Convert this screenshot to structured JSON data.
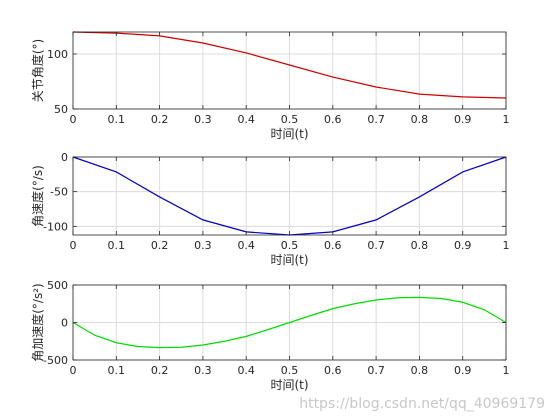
{
  "watermark": "https://blog.csdn.net/qq_40969179",
  "chart_data": [
    {
      "type": "line",
      "xlabel": "时间(t)",
      "ylabel": "关节角度(°)",
      "xlim": [
        0,
        1
      ],
      "ylim": [
        50,
        120
      ],
      "xticks": [
        0,
        0.1,
        0.2,
        0.3,
        0.4,
        0.5,
        0.6,
        0.7,
        0.8,
        0.9,
        1
      ],
      "xtick_labels": [
        "0",
        "0.1",
        "0.2",
        "0.3",
        "0.4",
        "0.5",
        "0.6",
        "0.7",
        "0.8",
        "0.9",
        "1"
      ],
      "yticks": [
        50,
        100
      ],
      "ytick_labels": [
        "50",
        "100"
      ],
      "grid": true,
      "series": [
        {
          "color": "#d00000",
          "x": [
            0,
            0.1,
            0.2,
            0.3,
            0.4,
            0.5,
            0.6,
            0.7,
            0.8,
            0.9,
            1.0
          ],
          "y": [
            120,
            119.0,
            116.5,
            110.0,
            101.0,
            90.0,
            79.0,
            70.0,
            63.5,
            61.0,
            60
          ]
        }
      ]
    },
    {
      "type": "line",
      "xlabel": "时间(t)",
      "ylabel": "角速度(°/s)",
      "xlim": [
        0,
        1
      ],
      "ylim": [
        -112.5,
        0
      ],
      "xticks": [
        0,
        0.1,
        0.2,
        0.3,
        0.4,
        0.5,
        0.6,
        0.7,
        0.8,
        0.9,
        1
      ],
      "xtick_labels": [
        "0",
        "0.1",
        "0.2",
        "0.3",
        "0.4",
        "0.5",
        "0.6",
        "0.7",
        "0.8",
        "0.9",
        "1"
      ],
      "yticks": [
        -100,
        -50,
        0
      ],
      "ytick_labels": [
        "-100",
        "-50",
        "0"
      ],
      "grid": true,
      "series": [
        {
          "color": "#0000cc",
          "x": [
            0,
            0.1,
            0.2,
            0.3,
            0.4,
            0.5,
            0.6,
            0.7,
            0.8,
            0.9,
            1.0
          ],
          "y": [
            0,
            -21.6,
            -57.6,
            -90.7,
            -108.0,
            -112.5,
            -108.0,
            -90.7,
            -57.6,
            -21.6,
            0
          ]
        }
      ]
    },
    {
      "type": "line",
      "xlabel": "时间(t)",
      "ylabel": "角加速度(°/s²)",
      "xlim": [
        0,
        1
      ],
      "ylim": [
        -500,
        500
      ],
      "xticks": [
        0,
        0.1,
        0.2,
        0.3,
        0.4,
        0.5,
        0.6,
        0.7,
        0.8,
        0.9,
        1
      ],
      "xtick_labels": [
        "0",
        "0.1",
        "0.2",
        "0.3",
        "0.4",
        "0.5",
        "0.6",
        "0.7",
        "0.8",
        "0.9",
        "1"
      ],
      "yticks": [
        -500,
        0,
        500
      ],
      "ytick_labels": [
        "-500",
        "0",
        "500"
      ],
      "grid": true,
      "series": [
        {
          "color": "#00dd00",
          "x": [
            0,
            0.05,
            0.1,
            0.15,
            0.2,
            0.25,
            0.3,
            0.35,
            0.4,
            0.45,
            0.5,
            0.55,
            0.6,
            0.65,
            0.7,
            0.75,
            0.8,
            0.85,
            0.9,
            0.95,
            1.0
          ],
          "y": [
            0,
            -170,
            -270,
            -320,
            -335,
            -330,
            -300,
            -250,
            -185,
            -95,
            0,
            95,
            185,
            250,
            300,
            330,
            335,
            320,
            270,
            170,
            0
          ]
        }
      ]
    }
  ]
}
